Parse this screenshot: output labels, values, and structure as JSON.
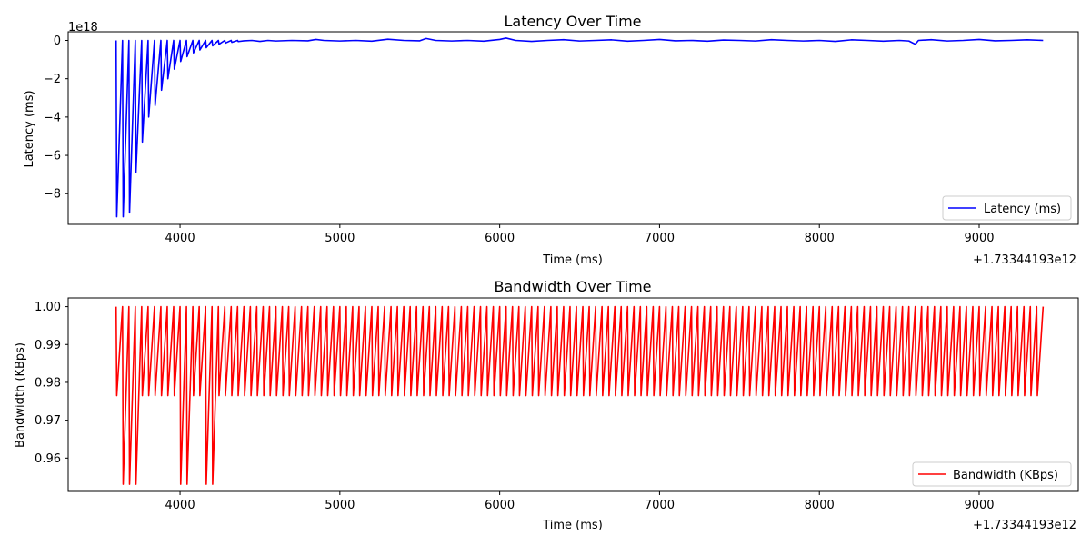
{
  "chart_data": [
    {
      "type": "line",
      "title": "Latency Over Time",
      "xlabel": "Time (ms)",
      "ylabel": "Latency (ms)",
      "x_offset_label": "+1.73344193e12",
      "y_scale_label": "1e18",
      "xlim": [
        3300,
        9620
      ],
      "ylim": [
        -9.6,
        0.45
      ],
      "x_ticks": [
        4000,
        5000,
        6000,
        7000,
        8000,
        9000
      ],
      "x_tick_labels": [
        "4000",
        "5000",
        "6000",
        "7000",
        "8000",
        "9000"
      ],
      "y_ticks": [
        0,
        -2,
        -4,
        -6,
        -8
      ],
      "y_tick_labels": [
        "0",
        "−2",
        "−4",
        "−6",
        "−8"
      ],
      "legend_position": "bottom-right",
      "series": [
        {
          "name": "Latency (ms)",
          "color": "#0000ff",
          "x": [
            3600,
            3604,
            3640,
            3644,
            3680,
            3684,
            3720,
            3724,
            3760,
            3764,
            3800,
            3804,
            3840,
            3844,
            3880,
            3884,
            3920,
            3924,
            3960,
            3964,
            4000,
            4004,
            4040,
            4044,
            4080,
            4084,
            4120,
            4124,
            4160,
            4164,
            4200,
            4204,
            4240,
            4244,
            4280,
            4284,
            4320,
            4324,
            4360,
            4364,
            4400,
            4450,
            4500,
            4550,
            4600,
            4700,
            4800,
            4850,
            4900,
            5000,
            5100,
            5200,
            5300,
            5400,
            5500,
            5540,
            5600,
            5700,
            5800,
            5900,
            6000,
            6040,
            6100,
            6200,
            6300,
            6400,
            6500,
            6600,
            6700,
            6800,
            6900,
            7000,
            7100,
            7200,
            7300,
            7400,
            7500,
            7600,
            7700,
            7800,
            7900,
            8000,
            8100,
            8200,
            8300,
            8400,
            8500,
            8560,
            8600,
            8620,
            8700,
            8800,
            8900,
            9000,
            9100,
            9200,
            9300,
            9400
          ],
          "y": [
            0,
            -9.2,
            0,
            -9.2,
            0,
            -9.0,
            0,
            -6.9,
            0,
            -5.3,
            0,
            -4.0,
            0,
            -3.4,
            0,
            -2.6,
            0,
            -2.0,
            0,
            -1.5,
            0,
            -1.1,
            0,
            -0.85,
            0,
            -0.65,
            0,
            -0.5,
            0,
            -0.38,
            0,
            -0.28,
            0,
            -0.2,
            0,
            -0.14,
            0,
            -0.1,
            0,
            -0.06,
            -0.02,
            0,
            -0.05,
            0,
            -0.03,
            0,
            -0.02,
            0.05,
            0,
            -0.03,
            0,
            -0.04,
            0.06,
            0,
            -0.02,
            0.1,
            0,
            -0.03,
            0,
            -0.04,
            0.05,
            0.12,
            0,
            -0.05,
            0,
            0.04,
            -0.03,
            0,
            0.03,
            -0.04,
            0,
            0.05,
            -0.02,
            0,
            -0.04,
            0.02,
            0,
            -0.03,
            0.04,
            0,
            -0.03,
            0,
            -0.05,
            0.03,
            0,
            -0.04,
            0,
            -0.03,
            -0.2,
            0,
            0.04,
            -0.03,
            0,
            0.05,
            -0.02,
            0,
            0.03,
            0
          ]
        }
      ]
    },
    {
      "type": "line",
      "title": "Bandwidth Over Time",
      "xlabel": "Time (ms)",
      "ylabel": "Bandwidth (KBps)",
      "x_offset_label": "+1.73344193e12",
      "xlim": [
        3300,
        9620
      ],
      "ylim": [
        0.9512,
        1.0023
      ],
      "x_ticks": [
        4000,
        5000,
        6000,
        7000,
        8000,
        9000
      ],
      "x_tick_labels": [
        "4000",
        "5000",
        "6000",
        "7000",
        "8000",
        "9000"
      ],
      "y_ticks": [
        0.96,
        0.97,
        0.98,
        0.99,
        1.0
      ],
      "y_tick_labels": [
        "0.96",
        "0.97",
        "0.98",
        "0.99",
        "1.00"
      ],
      "legend_position": "bottom-right",
      "series": [
        {
          "name": "Bandwidth (KBps)",
          "color": "#ff0000",
          "x_start": 3600,
          "x_end": 9400,
          "cycle_ms": 40,
          "cycle_count": 145,
          "peak": 1.0,
          "normal_min": 0.9765,
          "deep_min": 0.9531,
          "deep_cycles": [
            1,
            2,
            3,
            10,
            11,
            14,
            15
          ]
        }
      ]
    }
  ]
}
